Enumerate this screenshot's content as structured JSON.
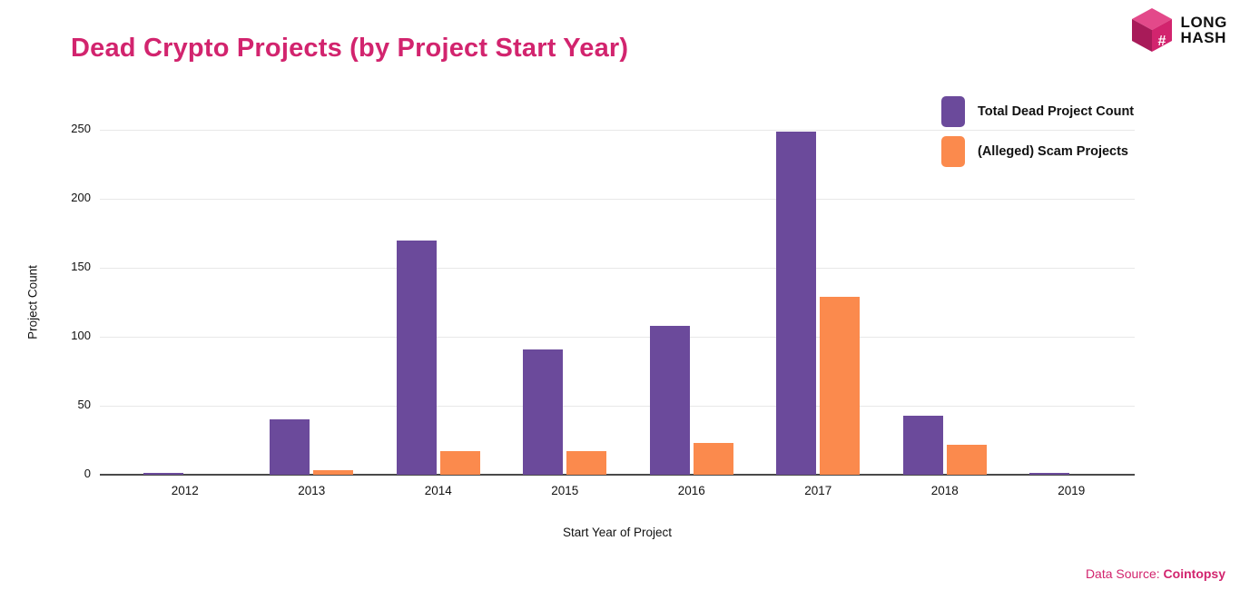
{
  "header": {
    "title": "Dead Crypto Projects (by Project Start Year)"
  },
  "brand": {
    "line1": "LONG",
    "line2": "HASH",
    "hash_glyph": "#",
    "color": "#d2246e"
  },
  "footer": {
    "source_label": "Data Source:",
    "source_name": "Cointopsy"
  },
  "chart_data": {
    "type": "bar",
    "title": "Dead Crypto Projects (by Project Start Year)",
    "categories": [
      "2012",
      "2013",
      "2014",
      "2015",
      "2016",
      "2017",
      "2018",
      "2019"
    ],
    "series": [
      {
        "name": "Total Dead Project Count",
        "color": "#6b4a9b",
        "values": [
          1,
          40,
          170,
          91,
          108,
          249,
          43,
          1
        ]
      },
      {
        "name": "(Alleged) Scam Projects",
        "color": "#fb8a4d",
        "values": [
          0,
          3,
          17,
          17,
          23,
          129,
          22,
          0
        ]
      }
    ],
    "xlabel": "Start Year of Project",
    "ylabel": "Project Count",
    "ylim": [
      0,
      250
    ],
    "yticks": [
      0,
      50,
      100,
      150,
      200,
      250
    ],
    "grid": true,
    "legend_position": "top-right",
    "accent_color": "#d2246e"
  }
}
